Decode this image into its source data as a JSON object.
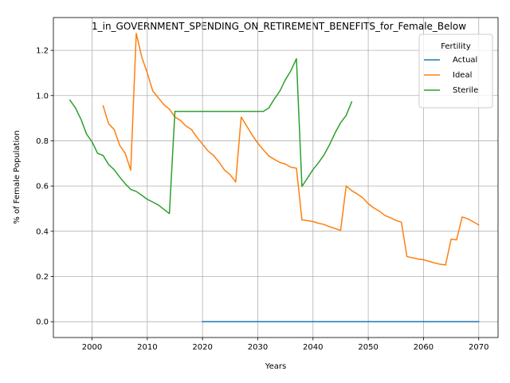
{
  "chart_data": {
    "type": "line",
    "title": "1_in_GOVERNMENT_SPENDING_ON_RETIREMENT_BENEFITS_for_Female_Below",
    "xlabel": "Years",
    "ylabel": "% of Female Population",
    "xlim": [
      1993,
      2073.5
    ],
    "ylim": [
      -0.07,
      1.345
    ],
    "xticks": [
      2000,
      2010,
      2020,
      2030,
      2040,
      2050,
      2060,
      2070
    ],
    "yticks": [
      0.0,
      0.2,
      0.4,
      0.6,
      0.8,
      1.0,
      1.2
    ],
    "ytick_labels": [
      "0.0",
      "0.2",
      "0.4",
      "0.6",
      "0.8",
      "1.0",
      "1.2"
    ],
    "grid": true,
    "legend": {
      "title": "Fertility",
      "placement": "top-right"
    },
    "series": [
      {
        "name": "Actual",
        "color": "#1f77b4",
        "points": [
          [
            2020,
            0.0
          ],
          [
            2030,
            0.0
          ],
          [
            2040,
            0.0
          ],
          [
            2050,
            0.0
          ],
          [
            2060,
            0.0
          ],
          [
            2070,
            0.0
          ]
        ]
      },
      {
        "name": "Ideal",
        "color": "#ff7f0e",
        "points": [
          [
            2002,
            0.955
          ],
          [
            2003,
            0.875
          ],
          [
            2004,
            0.85
          ],
          [
            2005,
            0.78
          ],
          [
            2006,
            0.745
          ],
          [
            2007,
            0.67
          ],
          [
            2008,
            1.275
          ],
          [
            2009,
            1.17
          ],
          [
            2010,
            1.1
          ],
          [
            2011,
            1.02
          ],
          [
            2012,
            0.99
          ],
          [
            2013,
            0.96
          ],
          [
            2014,
            0.94
          ],
          [
            2015,
            0.905
          ],
          [
            2016,
            0.89
          ],
          [
            2017,
            0.865
          ],
          [
            2018,
            0.85
          ],
          [
            2019,
            0.815
          ],
          [
            2020,
            0.785
          ],
          [
            2021,
            0.755
          ],
          [
            2022,
            0.735
          ],
          [
            2023,
            0.705
          ],
          [
            2024,
            0.67
          ],
          [
            2025,
            0.65
          ],
          [
            2026,
            0.618
          ],
          [
            2027,
            0.905
          ],
          [
            2028,
            0.865
          ],
          [
            2029,
            0.825
          ],
          [
            2030,
            0.79
          ],
          [
            2031,
            0.76
          ],
          [
            2032,
            0.733
          ],
          [
            2033,
            0.718
          ],
          [
            2034,
            0.704
          ],
          [
            2035,
            0.697
          ],
          [
            2036,
            0.683
          ],
          [
            2037,
            0.679
          ],
          [
            2038,
            0.45
          ],
          [
            2039,
            0.447
          ],
          [
            2040,
            0.443
          ],
          [
            2041,
            0.435
          ],
          [
            2042,
            0.43
          ],
          [
            2043,
            0.42
          ],
          [
            2044,
            0.412
          ],
          [
            2045,
            0.404
          ],
          [
            2046,
            0.6
          ],
          [
            2047,
            0.58
          ],
          [
            2048,
            0.565
          ],
          [
            2049,
            0.548
          ],
          [
            2050,
            0.522
          ],
          [
            2051,
            0.503
          ],
          [
            2052,
            0.489
          ],
          [
            2053,
            0.47
          ],
          [
            2054,
            0.46
          ],
          [
            2055,
            0.448
          ],
          [
            2056,
            0.44
          ],
          [
            2057,
            0.288
          ],
          [
            2058,
            0.283
          ],
          [
            2059,
            0.277
          ],
          [
            2060,
            0.274
          ],
          [
            2061,
            0.267
          ],
          [
            2062,
            0.26
          ],
          [
            2063,
            0.254
          ],
          [
            2064,
            0.251
          ],
          [
            2065,
            0.365
          ],
          [
            2066,
            0.362
          ],
          [
            2067,
            0.463
          ],
          [
            2068,
            0.455
          ],
          [
            2069,
            0.442
          ],
          [
            2070,
            0.428
          ]
        ]
      },
      {
        "name": "Sterile",
        "color": "#2ca02c",
        "points": [
          [
            1996,
            0.98
          ],
          [
            1997,
            0.945
          ],
          [
            1998,
            0.895
          ],
          [
            1999,
            0.83
          ],
          [
            2000,
            0.795
          ],
          [
            2001,
            0.745
          ],
          [
            2002,
            0.735
          ],
          [
            2003,
            0.695
          ],
          [
            2004,
            0.672
          ],
          [
            2005,
            0.64
          ],
          [
            2006,
            0.61
          ],
          [
            2007,
            0.585
          ],
          [
            2008,
            0.576
          ],
          [
            2009,
            0.559
          ],
          [
            2010,
            0.541
          ],
          [
            2011,
            0.529
          ],
          [
            2012,
            0.516
          ],
          [
            2013,
            0.497
          ],
          [
            2014,
            0.478
          ],
          [
            2015,
            0.93
          ],
          [
            2016,
            0.93
          ],
          [
            2017,
            0.93
          ],
          [
            2018,
            0.93
          ],
          [
            2019,
            0.93
          ],
          [
            2020,
            0.93
          ],
          [
            2021,
            0.93
          ],
          [
            2022,
            0.93
          ],
          [
            2023,
            0.93
          ],
          [
            2024,
            0.93
          ],
          [
            2025,
            0.93
          ],
          [
            2026,
            0.93
          ],
          [
            2027,
            0.93
          ],
          [
            2028,
            0.93
          ],
          [
            2029,
            0.93
          ],
          [
            2030,
            0.93
          ],
          [
            2031,
            0.93
          ],
          [
            2032,
            0.945
          ],
          [
            2033,
            0.985
          ],
          [
            2034,
            1.02
          ],
          [
            2035,
            1.07
          ],
          [
            2036,
            1.11
          ],
          [
            2037,
            1.163
          ],
          [
            2038,
            0.598
          ],
          [
            2039,
            0.635
          ],
          [
            2040,
            0.673
          ],
          [
            2041,
            0.703
          ],
          [
            2042,
            0.738
          ],
          [
            2043,
            0.783
          ],
          [
            2044,
            0.835
          ],
          [
            2045,
            0.88
          ],
          [
            2046,
            0.912
          ],
          [
            2047,
            0.972
          ]
        ]
      }
    ]
  }
}
